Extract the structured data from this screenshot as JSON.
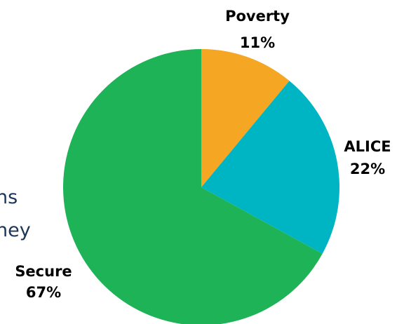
{
  "background_text": {
    "line1": "ns",
    "line2": "ney"
  },
  "chart_data": {
    "type": "pie",
    "title": "",
    "start_angle_deg": 0,
    "direction": "clockwise",
    "slices": [
      {
        "label": "Poverty",
        "value": 11,
        "display": "11%",
        "color": "#f5a623"
      },
      {
        "label": "ALICE",
        "value": 22,
        "display": "22%",
        "color": "#00b5c3"
      },
      {
        "label": "Secure",
        "value": 67,
        "display": "67%",
        "color": "#1db356"
      }
    ]
  }
}
